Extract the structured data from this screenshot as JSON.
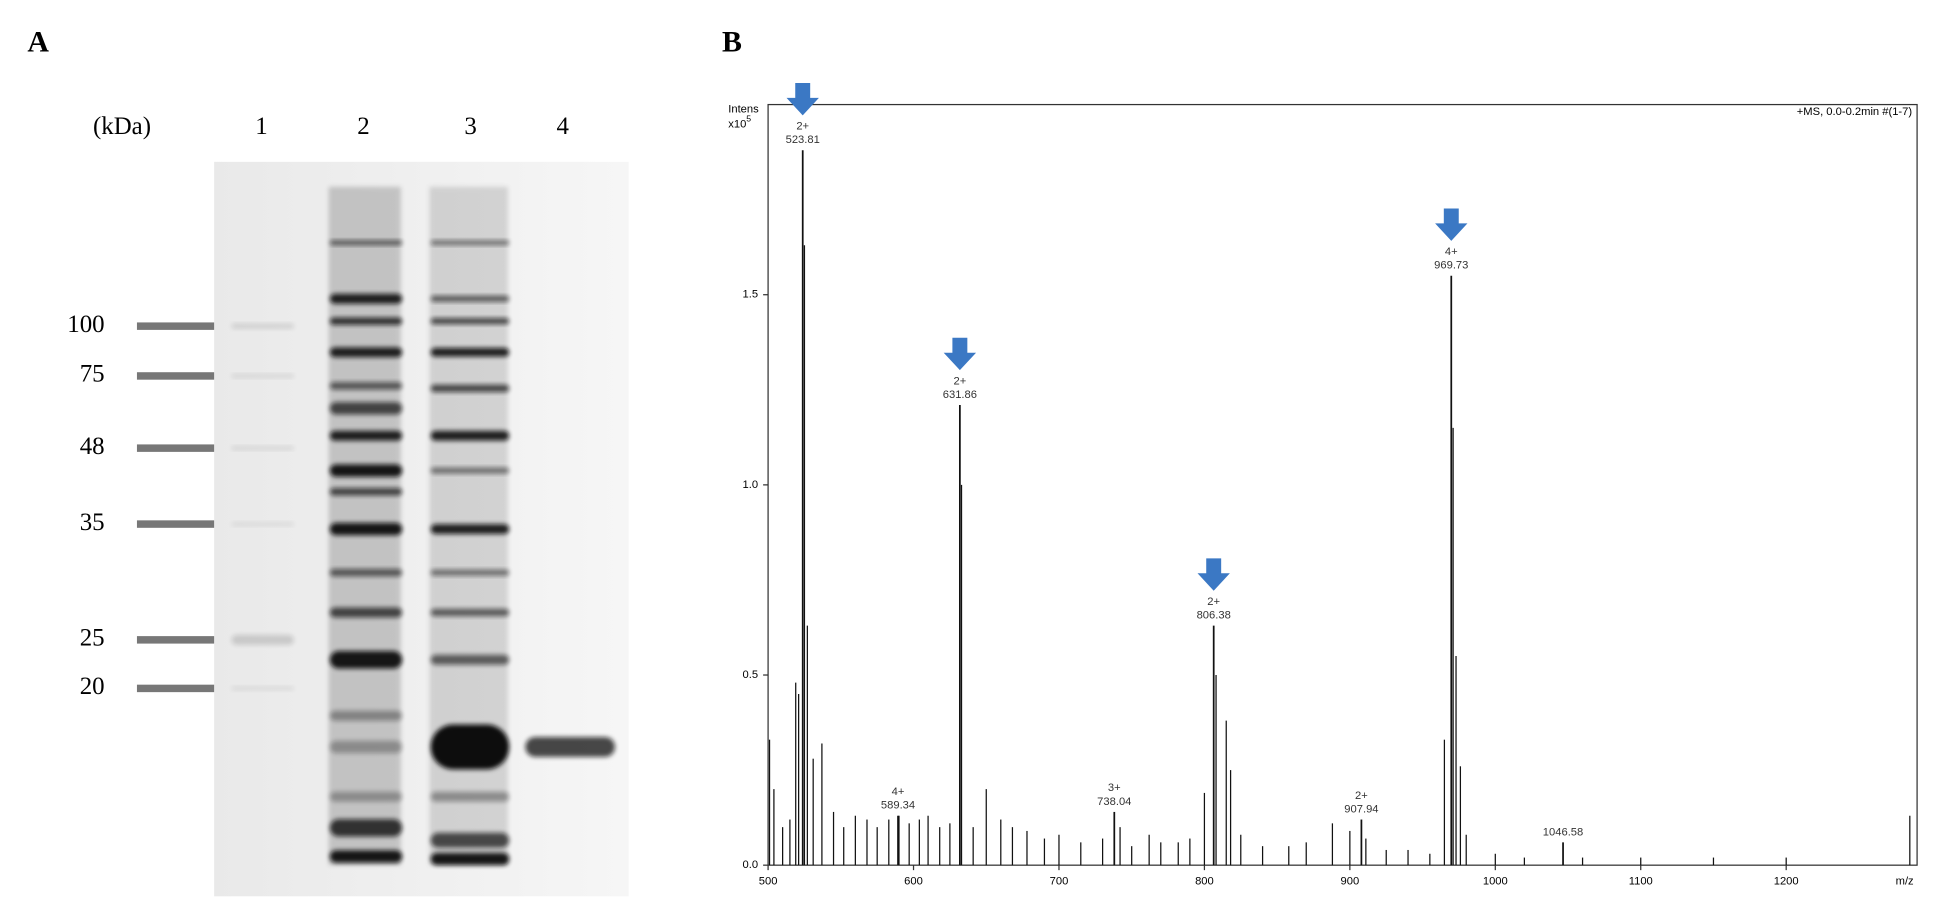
{
  "panel_labels": [
    "A",
    "B"
  ],
  "gel": {
    "unit_label": "(kDa)",
    "lanes": [
      "1",
      "2",
      "3",
      "4"
    ],
    "markers": [
      100,
      75,
      48,
      35,
      25,
      20
    ]
  },
  "chart_data": {
    "type": "spectrum",
    "y_label": "Intens",
    "y_multiplier": "x10",
    "y_multiplier_exp": "5",
    "x_label": "m/z",
    "info": "+MS, 0.0-0.2min #(1-7)",
    "xlim": [
      500,
      1290
    ],
    "xticks": [
      500,
      600,
      700,
      800,
      900,
      1000,
      1100,
      1200
    ],
    "ylim": [
      0,
      2.0
    ],
    "yticks": [
      {
        "value": 0,
        "label": "0.0"
      },
      0.5,
      {
        "value": 1,
        "label": "1.0"
      },
      1.5
    ],
    "color": "#111111",
    "arrow_color": "#3b78c4",
    "x": [
      523.81,
      589.34,
      631.86,
      738.04,
      806.38,
      907.94,
      969.73,
      1046.58
    ],
    "values": [
      1.88,
      0.13,
      1.21,
      0.14,
      0.63,
      0.12,
      1.55,
      0.06
    ],
    "charges": [
      "2+",
      "4+",
      "2+",
      "3+",
      "2+",
      "2+",
      "4+",
      null
    ],
    "arrows": [
      true,
      false,
      true,
      false,
      true,
      false,
      true,
      false
    ],
    "minor_x": [
      501,
      504,
      510,
      515,
      519,
      521,
      525,
      527,
      531,
      537,
      545,
      552,
      560,
      568,
      575,
      583,
      590,
      597,
      604,
      610,
      618,
      625,
      633,
      641,
      650,
      660,
      668,
      678,
      690,
      700,
      715,
      730,
      742,
      750,
      762,
      770,
      782,
      790,
      800,
      808,
      815,
      818,
      825,
      840,
      858,
      870,
      888,
      900,
      911,
      925,
      940,
      955,
      965,
      971,
      973,
      976,
      980,
      1000,
      1020,
      1060,
      1100,
      1150,
      1200,
      1285
    ],
    "minor_values": [
      0.33,
      0.2,
      0.1,
      0.12,
      0.48,
      0.45,
      1.63,
      0.63,
      0.28,
      0.32,
      0.14,
      0.1,
      0.13,
      0.12,
      0.1,
      0.12,
      0.13,
      0.11,
      0.12,
      0.13,
      0.1,
      0.11,
      1.0,
      0.1,
      0.2,
      0.12,
      0.1,
      0.09,
      0.07,
      0.08,
      0.06,
      0.07,
      0.1,
      0.05,
      0.08,
      0.06,
      0.06,
      0.07,
      0.19,
      0.5,
      0.38,
      0.25,
      0.08,
      0.05,
      0.05,
      0.06,
      0.11,
      0.09,
      0.07,
      0.04,
      0.04,
      0.03,
      0.33,
      1.15,
      0.55,
      0.26,
      0.08,
      0.03,
      0.02,
      0.02,
      0.02,
      0.02,
      0.02,
      0.13
    ]
  }
}
